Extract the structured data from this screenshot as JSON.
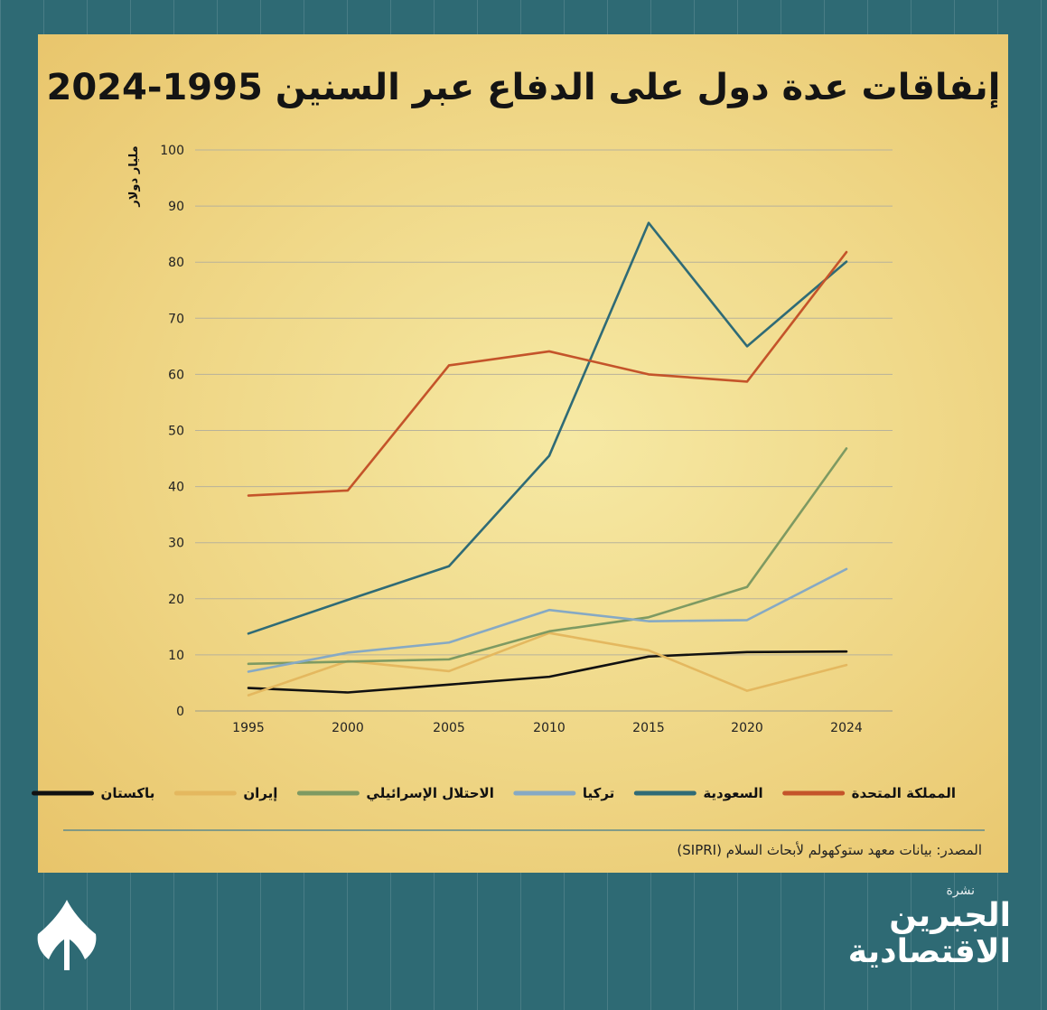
{
  "title": "إنفاقات عدة دول على الدفاع عبر السنين 1995-2024",
  "source": "المصدر: بيانات معهد ستوكهولم لأبحاث السلام (SIPRI)",
  "brand": {
    "small": "نشرة",
    "line1": "الجبرين",
    "line2": "الاقتصادية"
  },
  "colors": {
    "background": "#2e6a74",
    "panel": "#f0d98a"
  },
  "chart_data": {
    "type": "line",
    "ylabel": "مليار دولار",
    "xlabel": "",
    "x": [
      "1995",
      "2000",
      "2005",
      "2010",
      "2015",
      "2020",
      "2024"
    ],
    "yticks": [
      0,
      10,
      20,
      30,
      40,
      50,
      60,
      70,
      80,
      90,
      100
    ],
    "ylim": [
      0,
      100
    ],
    "grid": true,
    "legend_position": "bottom",
    "series": [
      {
        "name": "المملكة المتحدة",
        "color": "#c4542a",
        "values": [
          38.4,
          39.3,
          61.6,
          64.1,
          60.0,
          58.7,
          81.8
        ]
      },
      {
        "name": "السعودية",
        "color": "#2f6b76",
        "values": [
          13.8,
          19.8,
          25.8,
          45.5,
          87.0,
          65.0,
          80.1
        ]
      },
      {
        "name": "تركيا",
        "color": "#86a9c4",
        "values": [
          7.0,
          10.4,
          12.2,
          18.0,
          16.0,
          16.2,
          25.3
        ]
      },
      {
        "name": "الاحتلال الإسرائيلي",
        "color": "#7e9a62",
        "values": [
          8.4,
          8.8,
          9.2,
          14.2,
          16.7,
          22.1,
          46.8
        ]
      },
      {
        "name": "إيران",
        "color": "#e4b85f",
        "values": [
          2.8,
          8.9,
          7.1,
          13.9,
          10.8,
          3.6,
          8.2
        ]
      },
      {
        "name": "باكستان",
        "color": "#111111",
        "values": [
          4.1,
          3.3,
          4.7,
          6.1,
          9.7,
          10.5,
          10.6
        ]
      }
    ]
  }
}
